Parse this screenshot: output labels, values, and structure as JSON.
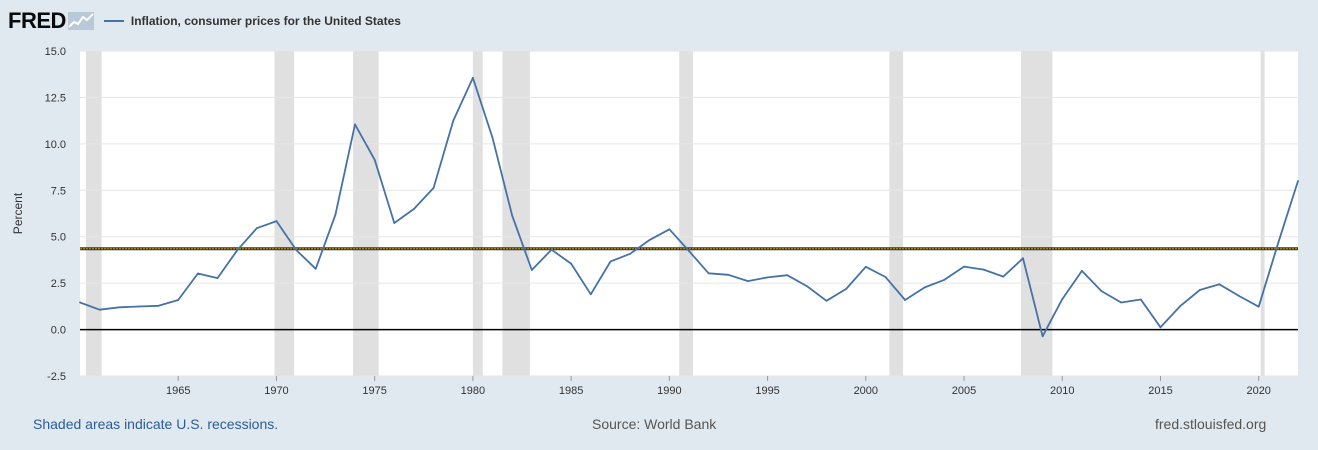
{
  "header": {
    "logo_text": "FRED",
    "series_title": "Inflation, consumer prices for the United States"
  },
  "footer": {
    "recession_note": "Shaded areas indicate U.S. recessions.",
    "source": "Source: World Bank",
    "site": "fred.stlouisfed.org"
  },
  "colors": {
    "line": "#4572a7",
    "background": "#e1e9f0",
    "plot": "#ffffff",
    "recession": "#e0e0e0",
    "zero_line": "#000000",
    "mean_line": "#c8a000",
    "link": "#2a5c9a"
  },
  "icons": {
    "logo_graph": "chart-line-icon"
  },
  "chart_data": {
    "type": "line",
    "title": "Inflation, consumer prices for the United States",
    "ylabel": "Percent",
    "xlabel": "",
    "ylim": [
      -2.5,
      15.0
    ],
    "y_ticks": [
      "15.0",
      "12.5",
      "10.0",
      "7.5",
      "5.0",
      "2.5",
      "0.0",
      "-2.5"
    ],
    "y_tick_values": [
      15.0,
      12.5,
      10.0,
      7.5,
      5.0,
      2.5,
      0.0,
      -2.5
    ],
    "xlim": [
      1960,
      2022
    ],
    "x_ticks": [
      "1965",
      "1970",
      "1975",
      "1980",
      "1985",
      "1990",
      "1995",
      "2000",
      "2005",
      "2010",
      "2015",
      "2020"
    ],
    "x_tick_values": [
      1965,
      1970,
      1975,
      1980,
      1985,
      1990,
      1995,
      2000,
      2005,
      2010,
      2015,
      2020
    ],
    "grid": "horizontal",
    "reference_lines": [
      {
        "value": 0.0,
        "color": "#000000"
      },
      {
        "value": 4.35,
        "color": "#c8a000"
      }
    ],
    "recessions": [
      [
        1960.3,
        1961.1
      ],
      [
        1969.9,
        1970.9
      ],
      [
        1973.9,
        1975.2
      ],
      [
        1980.0,
        1980.5
      ],
      [
        1981.5,
        1982.9
      ],
      [
        1990.5,
        1991.2
      ],
      [
        2001.2,
        2001.9
      ],
      [
        2007.9,
        2009.5
      ],
      [
        2020.1,
        2020.3
      ]
    ],
    "series": [
      {
        "name": "Inflation, consumer prices for the United States",
        "x": [
          1960,
          1961,
          1962,
          1963,
          1964,
          1965,
          1966,
          1967,
          1968,
          1969,
          1970,
          1971,
          1972,
          1973,
          1974,
          1975,
          1976,
          1977,
          1978,
          1979,
          1980,
          1981,
          1982,
          1983,
          1984,
          1985,
          1986,
          1987,
          1988,
          1989,
          1990,
          1991,
          1992,
          1993,
          1994,
          1995,
          1996,
          1997,
          1998,
          1999,
          2000,
          2001,
          2002,
          2003,
          2004,
          2005,
          2006,
          2007,
          2008,
          2009,
          2010,
          2011,
          2012,
          2013,
          2014,
          2015,
          2016,
          2017,
          2018,
          2019,
          2020,
          2021,
          2022
        ],
        "values": [
          1.46,
          1.07,
          1.2,
          1.24,
          1.28,
          1.59,
          3.02,
          2.77,
          4.27,
          5.46,
          5.84,
          4.29,
          3.27,
          6.18,
          11.05,
          9.14,
          5.74,
          6.5,
          7.63,
          11.25,
          13.55,
          10.33,
          6.13,
          3.21,
          4.3,
          3.55,
          1.9,
          3.66,
          4.08,
          4.83,
          5.4,
          4.23,
          3.03,
          2.95,
          2.61,
          2.81,
          2.93,
          2.34,
          1.55,
          2.19,
          3.38,
          2.83,
          1.59,
          2.27,
          2.68,
          3.39,
          3.23,
          2.85,
          3.84,
          -0.36,
          1.64,
          3.16,
          2.07,
          1.46,
          1.62,
          0.12,
          1.26,
          2.13,
          2.44,
          1.81,
          1.23,
          4.7,
          8.0
        ]
      }
    ]
  }
}
